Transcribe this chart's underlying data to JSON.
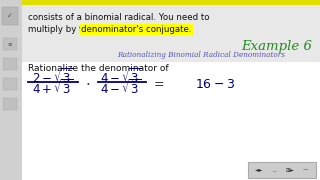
{
  "bg_color": "#f5f5f5",
  "sidebar_color": "#d0d0d0",
  "top_stripe_color": "#e8e8e8",
  "top_text_line1": "consists of a binomial radical. You need to",
  "top_text_line2": "multiply by the ",
  "top_text_highlight": "denominator's conjugate.",
  "example_label": "Example 6",
  "subtitle": "Rationalizing Binomial Radical Denominators",
  "rationalize_text": "Rationalize the denominator of",
  "highlight_color": "#ffff00",
  "example_color": "#228B22",
  "subtitle_color": "#5555bb",
  "body_text_color": "#111111",
  "fraction1_color": "#000080",
  "fraction2_color": "#000080",
  "result_color": "#000080",
  "toolbar_bg": "#cccccc",
  "toolbar_border": "#aaaaaa"
}
